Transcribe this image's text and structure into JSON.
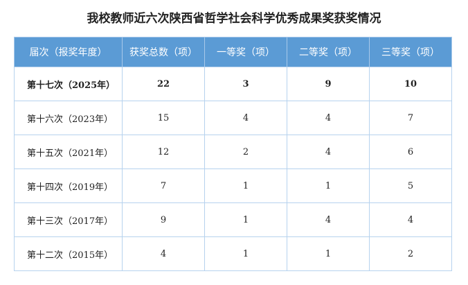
{
  "title": "我校教师近六次陕西省哲学社会科学优秀成果奖获奖情况",
  "table": {
    "headers": [
      "届次（报奖年度）",
      "获奖总数（项）",
      "一等奖（项）",
      "二等奖（项）",
      "三等奖（项）"
    ],
    "rows": [
      [
        "第十七次（2025年）",
        "22",
        "3",
        "9",
        "10"
      ],
      [
        "第十六次（2023年）",
        "15",
        "4",
        "4",
        "7"
      ],
      [
        "第十五次（2021年）",
        "12",
        "2",
        "4",
        "6"
      ],
      [
        "第十四次（2019年）",
        "7",
        "1",
        "1",
        "5"
      ],
      [
        "第十三次（2017年）",
        "9",
        "1",
        "4",
        "4"
      ],
      [
        "第十二次（2015年）",
        "4",
        "1",
        "1",
        "2"
      ]
    ]
  },
  "colors": {
    "header": "#5b9bd5",
    "border": "#b6d2ee"
  }
}
